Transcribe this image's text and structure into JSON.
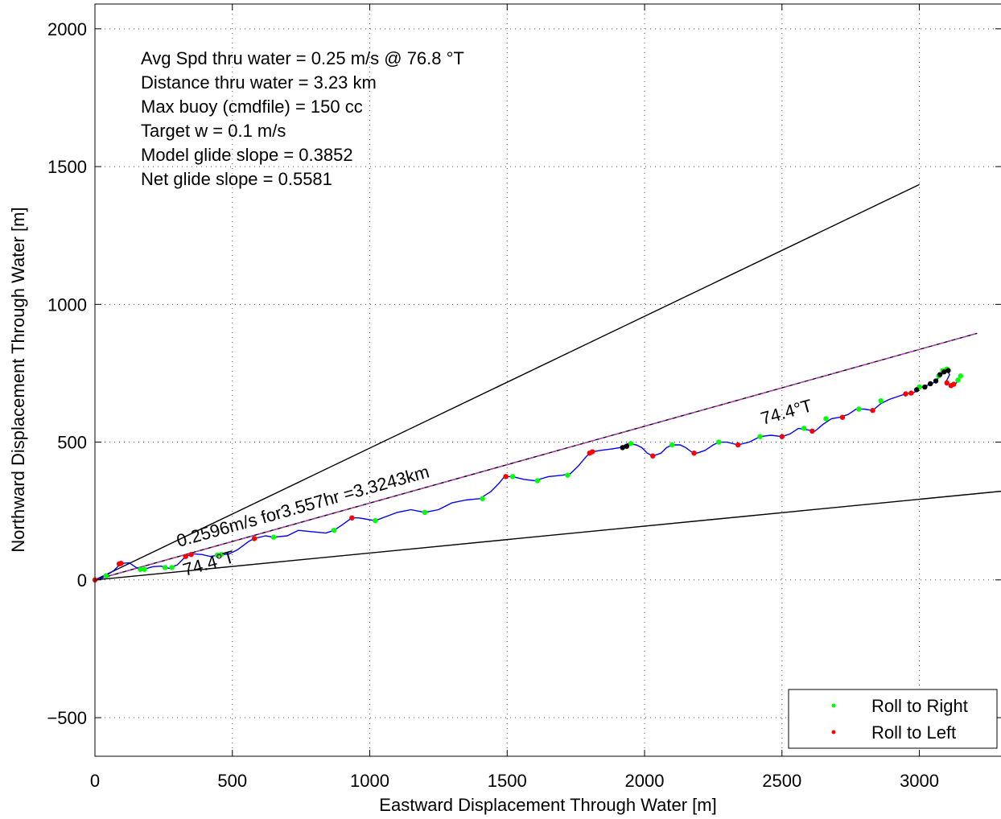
{
  "chart_data": {
    "type": "line",
    "xlabel": "Eastward Displacement Through Water [m]",
    "ylabel": "Northward Displacement Through Water [m]",
    "xlim": [
      0,
      3300
    ],
    "ylim": [
      -640,
      2090
    ],
    "xticks": [
      0,
      500,
      1000,
      1500,
      2000,
      2500,
      3000
    ],
    "yticks": [
      -500,
      0,
      500,
      1000,
      1500,
      2000
    ],
    "xtick_labels": [
      "0",
      "500",
      "1000",
      "1500",
      "2000",
      "2500",
      "3000"
    ],
    "ytick_labels": [
      "−500",
      "0",
      "500",
      "1000",
      "1500",
      "2000"
    ],
    "grid": true,
    "info_lines": [
      "Avg Spd thru water =  0.25 m/s @  76.8    °T",
      "Distance thru water =  3.23 km",
      "Max buoy (cmdfile) = 150 cc",
      "Target w = 0.1 m/s",
      "Model glide slope = 0.3852",
      "Net glide slope = 0.5581"
    ],
    "annotations": {
      "speed_text": "0.2596m/s for3.557hr =3.3243km",
      "heading_low": "74.4°T",
      "heading_high": "74.4°T"
    },
    "reference_lines": [
      {
        "name": "",
        "color": "#000000",
        "x": [
          0,
          3000
        ],
        "y": [
          0,
          1435
        ]
      },
      {
        "name": "",
        "color": "#000000",
        "x": [
          0,
          3300
        ],
        "y": [
          0,
          322
        ]
      },
      {
        "name": "",
        "color": "#000000",
        "x": [
          0,
          3210
        ],
        "y": [
          0,
          895
        ]
      },
      {
        "name": "",
        "color": "#cc33cc",
        "x": [
          0,
          3210
        ],
        "y": [
          0,
          895
        ]
      }
    ],
    "series": [
      {
        "name": "",
        "color": "#0000ff",
        "points": [
          [
            0,
            0
          ],
          [
            40,
            15
          ],
          [
            70,
            35
          ],
          [
            95,
            60
          ],
          [
            125,
            62
          ],
          [
            150,
            45
          ],
          [
            175,
            38
          ],
          [
            210,
            48
          ],
          [
            240,
            50
          ],
          [
            270,
            42
          ],
          [
            300,
            55
          ],
          [
            330,
            85
          ],
          [
            355,
            95
          ],
          [
            390,
            92
          ],
          [
            420,
            85
          ],
          [
            450,
            90
          ],
          [
            490,
            95
          ],
          [
            520,
            110
          ],
          [
            560,
            140
          ],
          [
            580,
            150
          ],
          [
            620,
            160
          ],
          [
            650,
            155
          ],
          [
            700,
            160
          ],
          [
            740,
            180
          ],
          [
            790,
            175
          ],
          [
            840,
            170
          ],
          [
            870,
            180
          ],
          [
            900,
            200
          ],
          [
            935,
            225
          ],
          [
            960,
            225
          ],
          [
            990,
            220
          ],
          [
            1020,
            215
          ],
          [
            1060,
            230
          ],
          [
            1100,
            245
          ],
          [
            1150,
            255
          ],
          [
            1200,
            245
          ],
          [
            1250,
            255
          ],
          [
            1300,
            280
          ],
          [
            1350,
            290
          ],
          [
            1400,
            295
          ],
          [
            1440,
            320
          ],
          [
            1470,
            350
          ],
          [
            1490,
            375
          ],
          [
            1520,
            375
          ],
          [
            1560,
            365
          ],
          [
            1600,
            360
          ],
          [
            1650,
            375
          ],
          [
            1700,
            380
          ],
          [
            1730,
            385
          ],
          [
            1760,
            415
          ],
          [
            1790,
            450
          ],
          [
            1810,
            465
          ],
          [
            1840,
            470
          ],
          [
            1880,
            475
          ],
          [
            1910,
            480
          ],
          [
            1940,
            495
          ],
          [
            1970,
            490
          ],
          [
            1990,
            480
          ],
          [
            2010,
            460
          ],
          [
            2030,
            450
          ],
          [
            2060,
            460
          ],
          [
            2080,
            480
          ],
          [
            2100,
            490
          ],
          [
            2130,
            490
          ],
          [
            2150,
            480
          ],
          [
            2170,
            465
          ],
          [
            2190,
            460
          ],
          [
            2220,
            470
          ],
          [
            2250,
            490
          ],
          [
            2270,
            500
          ],
          [
            2300,
            500
          ],
          [
            2340,
            490
          ],
          [
            2380,
            500
          ],
          [
            2420,
            520
          ],
          [
            2460,
            525
          ],
          [
            2500,
            520
          ],
          [
            2530,
            530
          ],
          [
            2560,
            550
          ],
          [
            2590,
            545
          ],
          [
            2620,
            540
          ],
          [
            2650,
            565
          ],
          [
            2680,
            585
          ],
          [
            2710,
            590
          ],
          [
            2740,
            600
          ],
          [
            2770,
            620
          ],
          [
            2800,
            620
          ],
          [
            2830,
            615
          ],
          [
            2860,
            640
          ],
          [
            2890,
            655
          ],
          [
            2920,
            665
          ],
          [
            2950,
            675
          ],
          [
            2980,
            680
          ],
          [
            3010,
            700
          ],
          [
            3040,
            710
          ],
          [
            3060,
            720
          ],
          [
            3080,
            750
          ],
          [
            3100,
            765
          ],
          [
            3110,
            745
          ],
          [
            3095,
            715
          ],
          [
            3120,
            705
          ],
          [
            3135,
            715
          ],
          [
            3150,
            740
          ]
        ]
      }
    ],
    "markers": {
      "green": [
        [
          40,
          15
        ],
        [
          165,
          38
        ],
        [
          180,
          38
        ],
        [
          255,
          45
        ],
        [
          280,
          45
        ],
        [
          445,
          90
        ],
        [
          460,
          92
        ],
        [
          580,
          150
        ],
        [
          650,
          155
        ],
        [
          870,
          180
        ],
        [
          1020,
          215
        ],
        [
          1200,
          245
        ],
        [
          1410,
          295
        ],
        [
          1520,
          375
        ],
        [
          1610,
          360
        ],
        [
          1720,
          380
        ],
        [
          1950,
          495
        ],
        [
          2100,
          490
        ],
        [
          2270,
          500
        ],
        [
          2420,
          520
        ],
        [
          2580,
          550
        ],
        [
          2660,
          585
        ],
        [
          2780,
          620
        ],
        [
          2860,
          650
        ],
        [
          3000,
          700
        ],
        [
          3070,
          740
        ],
        [
          3085,
          760
        ],
        [
          3100,
          765
        ],
        [
          3140,
          725
        ],
        [
          3150,
          740
        ]
      ],
      "red": [
        [
          0,
          0
        ],
        [
          88,
          58
        ],
        [
          95,
          60
        ],
        [
          330,
          85
        ],
        [
          350,
          92
        ],
        [
          580,
          150
        ],
        [
          935,
          225
        ],
        [
          1495,
          375
        ],
        [
          1800,
          460
        ],
        [
          1810,
          465
        ],
        [
          2030,
          450
        ],
        [
          2180,
          460
        ],
        [
          2340,
          490
        ],
        [
          2500,
          520
        ],
        [
          2610,
          540
        ],
        [
          2720,
          590
        ],
        [
          2830,
          615
        ],
        [
          2950,
          675
        ],
        [
          2970,
          678
        ],
        [
          3100,
          715
        ],
        [
          3115,
          705
        ],
        [
          3125,
          710
        ]
      ],
      "black": [
        [
          1920,
          480
        ],
        [
          1935,
          485
        ],
        [
          2990,
          690
        ],
        [
          3020,
          700
        ],
        [
          3040,
          712
        ],
        [
          3060,
          722
        ],
        [
          3075,
          745
        ],
        [
          3090,
          755
        ],
        [
          3105,
          760
        ]
      ]
    },
    "legend": {
      "position": "bottom-right",
      "entries": [
        {
          "label": "Roll to Right",
          "color": "#00ff00"
        },
        {
          "label": "Roll to Left",
          "color": "#ff0000"
        }
      ]
    }
  }
}
